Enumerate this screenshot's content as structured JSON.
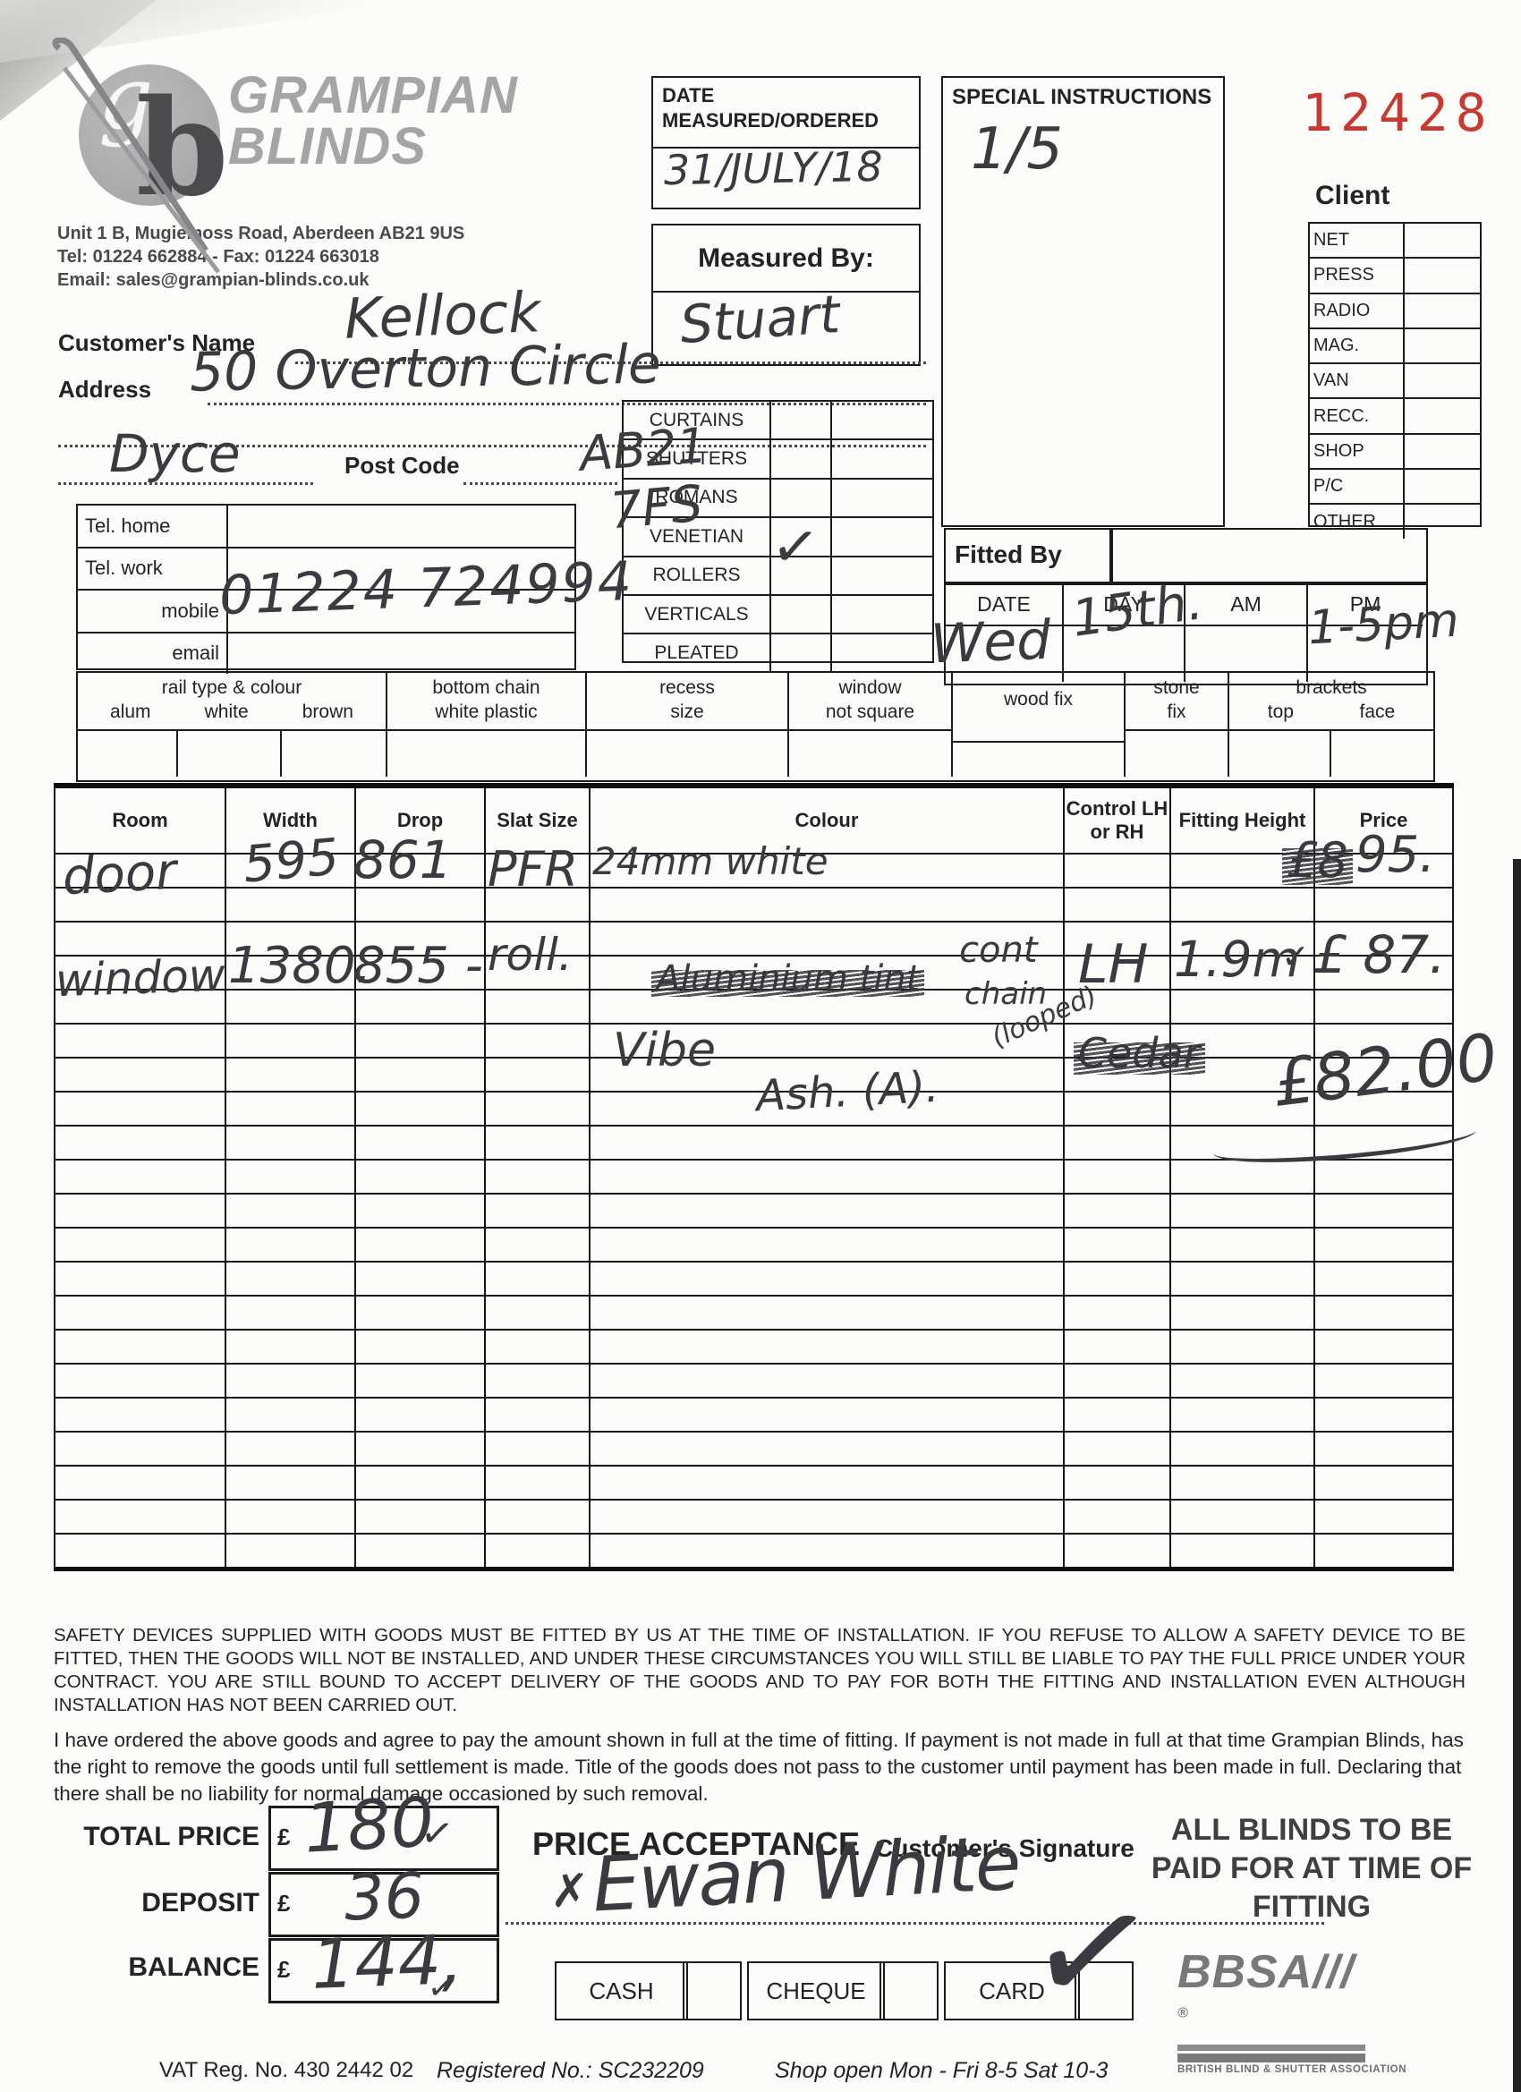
{
  "company": {
    "monogram_g": "g",
    "monogram_b": "b",
    "name_line1": "GRAMPIAN",
    "name_line2": "BLINDS",
    "address": "Unit 1 B, Mugiemoss Road, Aberdeen AB21 9US",
    "tel_fax": "Tel: 01224 662884  -  Fax: 01224 663018",
    "email": "Email: sales@grampian-blinds.co.uk"
  },
  "order_number": "12428",
  "date_measured": {
    "label_line1": "DATE",
    "label_line2": "MEASURED/ORDERED"
  },
  "measured_by": {
    "label": "Measured By:"
  },
  "special": {
    "label": "SPECIAL INSTRUCTIONS"
  },
  "client": {
    "title": "Client",
    "rows": [
      "NET",
      "PRESS",
      "RADIO",
      "MAG.",
      "VAN",
      "RECC.",
      "SHOP",
      "P/C",
      "OTHER"
    ]
  },
  "customer": {
    "name_label": "Customer's Name",
    "address_label": "Address",
    "postcode_label": "Post Code"
  },
  "phones": {
    "labels": [
      "Tel. home",
      "Tel. work",
      "mobile",
      "email"
    ]
  },
  "products": {
    "items": [
      "CURTAINS",
      "SHUTTERS",
      "ROMANS",
      "VENETIAN",
      "ROLLERS",
      "VERTICALS",
      "PLEATED"
    ],
    "ticked_item": "ROLLERS"
  },
  "fitted": {
    "label": "Fitted By",
    "cols": [
      "DATE",
      "DAY",
      "AM",
      "PM"
    ]
  },
  "options": {
    "rail_title": "rail type & colour",
    "rail_subs": [
      "alum",
      "white",
      "brown"
    ],
    "chain_l1": "bottom chain",
    "chain_l2": "white plastic",
    "recess_l1": "recess",
    "recess_l2": "size",
    "window_l1": "window",
    "window_l2": "not square",
    "wood": "wood fix",
    "stone_l1": "stone",
    "stone_l2": "fix",
    "brackets_title": "brackets",
    "bracket_subs": [
      "top",
      "face"
    ]
  },
  "order_table": {
    "headers": [
      "Room",
      "Width",
      "Drop",
      "Slat Size",
      "Colour",
      "Control LH or RH",
      "Fitting Height",
      "Price"
    ],
    "row_count": 21
  },
  "handwriting": {
    "customer_name": "Kellock",
    "address_line": "50 Overton Circle",
    "town": "Dyce",
    "postcode_top": "AB21",
    "postcode_bottom": "7FS",
    "mobile": "01224 724994",
    "date_measured": "31/JULY/18",
    "measured_by": "Stuart",
    "special_instructions": "1/5",
    "product_tick": "✓",
    "fitted_date": "Wed",
    "fitted_day": "15th.",
    "fitted_pm": "1-5pm",
    "row1_room": "door",
    "row1_width": "595",
    "row1_drop": "861",
    "row1_slat": "PFR",
    "row1_colour": "24mm white",
    "row1_price_struck": "£8",
    "row1_price": "95.",
    "row2_room": "window",
    "row2_width": "1380.",
    "row2_drop": "855 -",
    "row2_slat": "roll.",
    "row2_colour_struck": "Aluminium tint",
    "row2_note_line1": "cont",
    "row2_note_line2": "chain",
    "row2_note_line3": "(looped)",
    "row2_control": "LH",
    "row2_fitting_height": "1.9m",
    "row2_height_tick": "✓",
    "row2_price": "£ 87.",
    "row3_colour_a": "Vibe",
    "row3_colour_struck": "Cedar",
    "row3_colour_b": "Ash. (A).",
    "price_total": "£82.00",
    "total_price": "180",
    "total_tick": "✓",
    "deposit": "36",
    "balance": "144,",
    "balance_tick": "✓",
    "signature_x": "✗",
    "signature": "Ewan White",
    "card_tick": "✓"
  },
  "terms": {
    "para1": "SAFETY DEVICES SUPPLIED WITH GOODS MUST BE FITTED BY US AT THE TIME OF INSTALLATION. IF YOU REFUSE TO ALLOW A SAFETY DEVICE TO BE FITTED, THEN THE GOODS WILL NOT BE INSTALLED, AND UNDER THESE CIRCUMSTANCES YOU WILL STILL BE LIABLE TO PAY THE FULL PRICE UNDER YOUR CONTRACT. YOU ARE STILL BOUND TO ACCEPT DELIVERY OF THE GOODS AND TO PAY FOR BOTH THE FITTING AND INSTALLATION EVEN ALTHOUGH INSTALLATION HAS NOT BEEN CARRIED OUT.",
    "para2": "I have ordered the above goods and agree to pay the amount shown in full at the time of fitting. If payment is not made in full at that time Grampian Blinds, has the right to remove the goods until full settlement is made. Title of the goods does not pass to the customer until payment has been made in full. Declaring that there shall be no liability for normal damage occasioned by such removal."
  },
  "totals": {
    "rows": [
      {
        "label": "TOTAL PRICE",
        "currency": "£"
      },
      {
        "label": "DEPOSIT",
        "currency": "£"
      },
      {
        "label": "BALANCE",
        "currency": "£"
      }
    ]
  },
  "acceptance": {
    "title": "PRICE ACCEPTANCE",
    "sig_label": "Customer's Signature"
  },
  "payment": {
    "methods": [
      "CASH",
      "CHEQUE",
      "CARD"
    ]
  },
  "paid_notice": "ALL BLINDS TO BE PAID FOR AT TIME OF FITTING",
  "bbsa": {
    "acronym": "BBSA",
    "slashes": "///",
    "reg": "®",
    "caption": "BRITISH BLIND & SHUTTER ASSOCIATION"
  },
  "footer": {
    "vat": "VAT Reg. No. 430 2442 02",
    "registered": "Registered No.: SC232209",
    "hours": "Shop open Mon - Fri 8-5  Sat 10-3"
  }
}
